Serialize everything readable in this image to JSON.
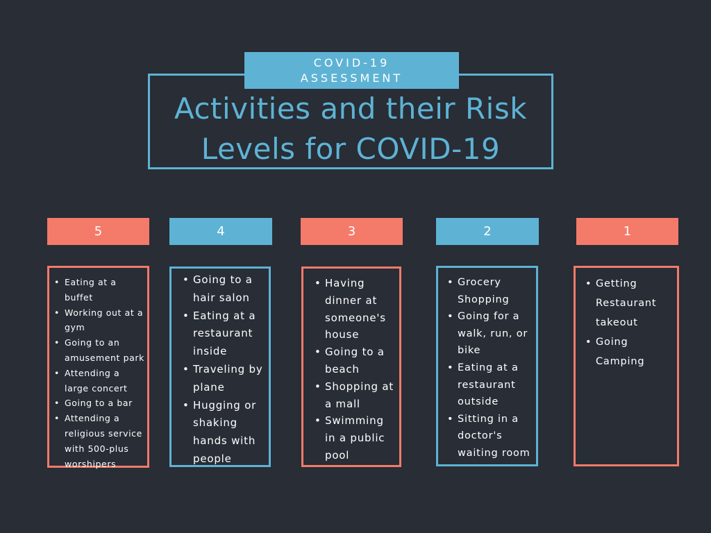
{
  "badge": {
    "line1": "COVID-19",
    "line2": "ASSESSMENT"
  },
  "title": {
    "line1": "Activities and their Risk",
    "line2": "Levels for COVID-19"
  },
  "colors": {
    "background": "#282d36",
    "coral": "#f47a6a",
    "blue": "#5eb3d4",
    "text": "#ffffff"
  },
  "levels": [
    {
      "label": "5",
      "items": [
        "Eating at a buffet",
        "Working out at a gym",
        "Going to an amusement park",
        "Attending a large concert",
        "Going to a bar",
        "Attending a religious service with 500-plus worshipers"
      ]
    },
    {
      "label": "4",
      "items": [
        "Going to a hair salon",
        "Eating at a restaurant inside",
        "Traveling by plane",
        "Hugging or shaking hands with people"
      ]
    },
    {
      "label": "3",
      "items": [
        "Having dinner at someone's house",
        "Going to a beach",
        "Shopping at a mall",
        "Swimming in a public pool"
      ]
    },
    {
      "label": "2",
      "items": [
        "Grocery Shopping",
        "Going for a walk, run, or bike",
        "Eating at a restaurant outside",
        "Sitting in a doctor's waiting room"
      ]
    },
    {
      "label": "1",
      "items": [
        "Getting Restaurant takeout",
        "Going Camping"
      ]
    }
  ]
}
